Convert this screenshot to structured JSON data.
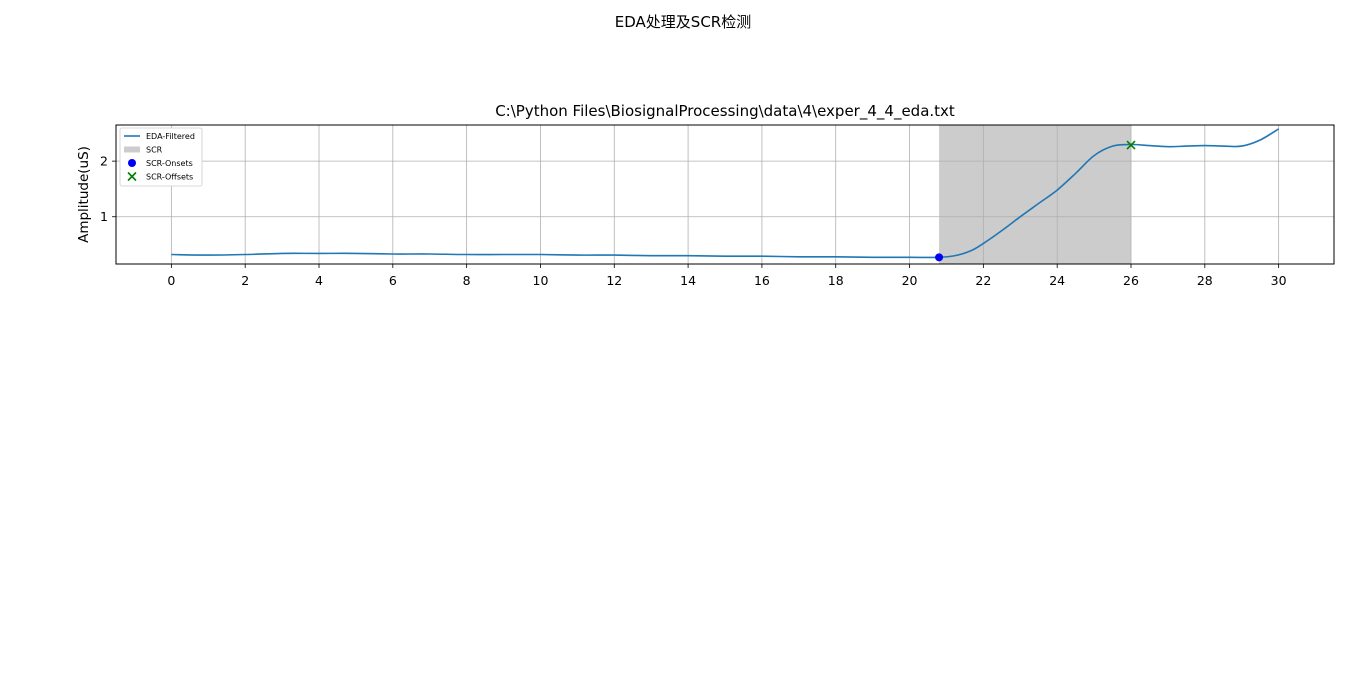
{
  "figure": {
    "suptitle": "EDA处理及SCR检测"
  },
  "chart_data": {
    "type": "line",
    "title": "C:\\Python Files\\BiosignalProcessing\\data\\4\\exper_4_4_eda.txt",
    "xlabel": "",
    "ylabel": "Amplitude(uS)",
    "xlim": [
      -1.5,
      31.5
    ],
    "ylim": [
      0.15,
      2.65
    ],
    "xticks": [
      0,
      2,
      4,
      6,
      8,
      10,
      12,
      14,
      16,
      18,
      20,
      22,
      24,
      26,
      28,
      30
    ],
    "yticks": [
      1,
      2
    ],
    "grid": true,
    "legend_position": "top-left",
    "legend": [
      "EDA-Filtered",
      "SCR",
      "SCR-Onsets",
      "SCR-Offsets"
    ],
    "series": [
      {
        "name": "EDA-Filtered",
        "color": "#1f77b4",
        "x": [
          0,
          1,
          2,
          3,
          4,
          5,
          6,
          7,
          8,
          9,
          10,
          11,
          12,
          13,
          14,
          15,
          16,
          17,
          18,
          19,
          20,
          20.8,
          21.3,
          21.7,
          22,
          22.5,
          23,
          23.5,
          24,
          24.5,
          25,
          25.5,
          26,
          26.5,
          27,
          27.5,
          28,
          28.5,
          29,
          29.5,
          30
        ],
        "y": [
          0.32,
          0.31,
          0.32,
          0.34,
          0.34,
          0.34,
          0.33,
          0.33,
          0.32,
          0.32,
          0.32,
          0.31,
          0.31,
          0.3,
          0.3,
          0.29,
          0.29,
          0.28,
          0.28,
          0.27,
          0.27,
          0.27,
          0.31,
          0.4,
          0.52,
          0.75,
          1.0,
          1.24,
          1.48,
          1.78,
          2.1,
          2.27,
          2.3,
          2.28,
          2.26,
          2.27,
          2.28,
          2.27,
          2.27,
          2.38,
          2.58
        ]
      }
    ],
    "scr_regions": [
      {
        "start": 20.8,
        "end": 26.0,
        "color": "#cccccc"
      }
    ],
    "onsets": {
      "name": "SCR-Onsets",
      "color": "#0000ff",
      "x": [
        20.8
      ],
      "y": [
        0.27
      ]
    },
    "offsets": {
      "name": "SCR-Offsets",
      "color": "#008000",
      "x": [
        26.0
      ],
      "y": [
        2.29
      ]
    }
  }
}
